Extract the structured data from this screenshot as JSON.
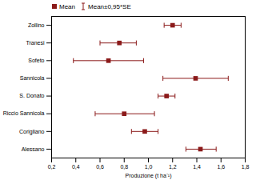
{
  "chart_data": {
    "type": "scatter",
    "orientation": "horizontal",
    "legend": "top-left",
    "grid": false,
    "x_label": "Produzione (t ha⁻¹)",
    "categories": [
      "Zollino",
      "Tranesi",
      "Sofeto",
      "Sannicola",
      "S. Donato",
      "Riccio Sannicola",
      "Corigliano",
      "Alessano"
    ],
    "series": [
      {
        "name": "Mean",
        "color": "#8b1a1a",
        "marker": "square",
        "values": [
          1.2,
          0.76,
          0.67,
          1.39,
          1.15,
          0.8,
          0.97,
          1.43
        ],
        "error_name": "Mean±0,95*SE",
        "error_low": [
          1.13,
          0.6,
          0.38,
          1.12,
          1.08,
          0.56,
          0.86,
          1.31
        ],
        "error_high": [
          1.27,
          0.9,
          0.96,
          1.66,
          1.22,
          1.05,
          1.08,
          1.56
        ]
      }
    ],
    "xlim": [
      0.2,
      1.8
    ],
    "xticks": [
      {
        "value": 0.2,
        "label": "0,2"
      },
      {
        "value": 0.4,
        "label": "0,4"
      },
      {
        "value": 0.6,
        "label": "0,6"
      },
      {
        "value": 0.8,
        "label": "0,8"
      },
      {
        "value": 1.0,
        "label": "1,0"
      },
      {
        "value": 1.2,
        "label": "1,2"
      },
      {
        "value": 1.4,
        "label": "1,4"
      },
      {
        "value": 1.6,
        "label": "1,6"
      },
      {
        "value": 1.8,
        "label": "1,8"
      }
    ]
  }
}
